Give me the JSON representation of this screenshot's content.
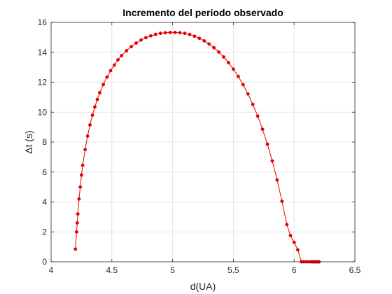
{
  "chart_data": {
    "type": "line",
    "title": "Incremento del periodo observado",
    "xlabel": "d(UA)",
    "ylabel": "Δt (s)",
    "xlim": [
      4,
      6.5
    ],
    "ylim": [
      0,
      16
    ],
    "xticks": [
      4,
      4.5,
      5,
      5.5,
      6,
      6.5
    ],
    "xtick_labels": [
      "4",
      "4.5",
      "5",
      "5.5",
      "6",
      "6.5"
    ],
    "yticks": [
      0,
      2,
      4,
      6,
      8,
      10,
      12,
      14,
      16
    ],
    "ytick_labels": [
      "0",
      "2",
      "4",
      "6",
      "8",
      "10",
      "12",
      "14",
      "16"
    ],
    "grid": true,
    "series": [
      {
        "color": "#e60000",
        "marker": "dot",
        "x": [
          4.2,
          4.21,
          4.215,
          4.22,
          4.23,
          4.24,
          4.25,
          4.26,
          4.28,
          4.3,
          4.32,
          4.34,
          4.36,
          4.38,
          4.4,
          4.43,
          4.46,
          4.49,
          4.52,
          4.55,
          4.58,
          4.62,
          4.66,
          4.7,
          4.74,
          4.78,
          4.82,
          4.86,
          4.9,
          4.94,
          4.98,
          5.02,
          5.06,
          5.1,
          5.14,
          5.18,
          5.22,
          5.26,
          5.3,
          5.34,
          5.38,
          5.42,
          5.46,
          5.5,
          5.54,
          5.58,
          5.62,
          5.66,
          5.7,
          5.74,
          5.78,
          5.82,
          5.86,
          5.9,
          5.94,
          5.97,
          6.0,
          6.03,
          6.06,
          6.08,
          6.1,
          6.12,
          6.14,
          6.15,
          6.16,
          6.17,
          6.18,
          6.19,
          6.195,
          6.2,
          6.205
        ],
        "y": [
          0.85,
          2.0,
          2.6,
          3.2,
          4.2,
          5.0,
          5.8,
          6.45,
          7.5,
          8.4,
          9.15,
          9.8,
          10.35,
          10.85,
          11.3,
          11.85,
          12.35,
          12.78,
          13.15,
          13.5,
          13.78,
          14.1,
          14.38,
          14.62,
          14.82,
          14.98,
          15.1,
          15.2,
          15.27,
          15.31,
          15.33,
          15.33,
          15.31,
          15.27,
          15.19,
          15.08,
          14.94,
          14.77,
          14.56,
          14.31,
          14.02,
          13.69,
          13.31,
          12.88,
          12.39,
          11.84,
          11.22,
          10.52,
          9.74,
          8.86,
          7.86,
          6.74,
          5.47,
          4.05,
          2.49,
          1.76,
          1.3,
          0.8,
          0.0,
          0.0,
          0.0,
          0.0,
          0.0,
          0.0,
          0.0,
          0.0,
          0.0,
          0.0,
          0.0,
          0.0,
          0.0
        ]
      }
    ]
  }
}
